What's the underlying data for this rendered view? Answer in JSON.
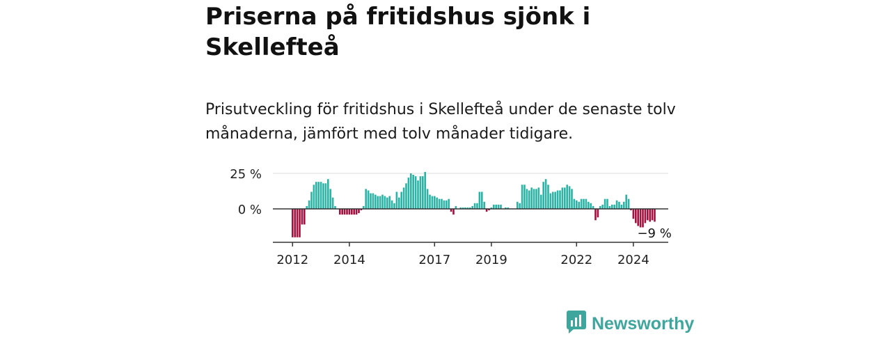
{
  "title": "Priserna på fritidshus sjönk i Skellefteå",
  "subtitle": "Prisutveckling för fritidshus i Skellefteå under de senaste tolv månaderna, jämfört med tolv månader tidigare.",
  "brand": {
    "name": "Newsworthy",
    "icon": "newsworthy-logo-icon",
    "color": "#3ea69c"
  },
  "colors": {
    "positive": "#2bb3a5",
    "negative": "#a4113f",
    "zero_line": "#333333",
    "grid": "#dddddd"
  },
  "chart_data": {
    "type": "bar",
    "title": "Priserna på fritidshus sjönk i Skellefteå",
    "xlabel": "",
    "ylabel": "",
    "unit": "%",
    "ylim": [
      -24,
      27
    ],
    "yticks": [
      {
        "value": 25,
        "label": "25 %"
      },
      {
        "value": 0,
        "label": "0 %"
      }
    ],
    "xticks": [
      {
        "index": 0,
        "label": "2012"
      },
      {
        "index": 24,
        "label": "2014"
      },
      {
        "index": 60,
        "label": "2017"
      },
      {
        "index": 84,
        "label": "2019"
      },
      {
        "index": 120,
        "label": "2022"
      },
      {
        "index": 144,
        "label": "2024"
      }
    ],
    "start": "2012-01",
    "end_label": "−9 %",
    "values": [
      -20,
      -20,
      -20,
      -20,
      -11,
      -11,
      2,
      6,
      12,
      17,
      19,
      19,
      19,
      18,
      18,
      21,
      14,
      8,
      2,
      0,
      -4,
      -4,
      -4,
      -4,
      -4,
      -4,
      -4,
      -4,
      -3,
      -1,
      2,
      14,
      13,
      11,
      11,
      10,
      9,
      9,
      10,
      9,
      8,
      9,
      6,
      4,
      12,
      8,
      12,
      15,
      18,
      22,
      25,
      24,
      23,
      20,
      23,
      23,
      26,
      14,
      10,
      9,
      9,
      8,
      7,
      7,
      6,
      6,
      7,
      -2,
      -4,
      2,
      0,
      1,
      1,
      1,
      1,
      1,
      2,
      4,
      4,
      12,
      12,
      5,
      -2,
      -1,
      1,
      3,
      3,
      3,
      3,
      0,
      1,
      1,
      0,
      0,
      0,
      5,
      4,
      17,
      17,
      14,
      13,
      15,
      14,
      14,
      15,
      10,
      19,
      21,
      17,
      11,
      12,
      12,
      13,
      13,
      15,
      15,
      17,
      16,
      14,
      7,
      6,
      5,
      7,
      7,
      7,
      5,
      4,
      2,
      -8,
      -6,
      2,
      3,
      7,
      7,
      2,
      3,
      3,
      6,
      5,
      3,
      5,
      10,
      7,
      -1,
      -7,
      -10,
      -12,
      -13,
      -13,
      -10,
      -8,
      -9,
      -8,
      -9
    ]
  }
}
